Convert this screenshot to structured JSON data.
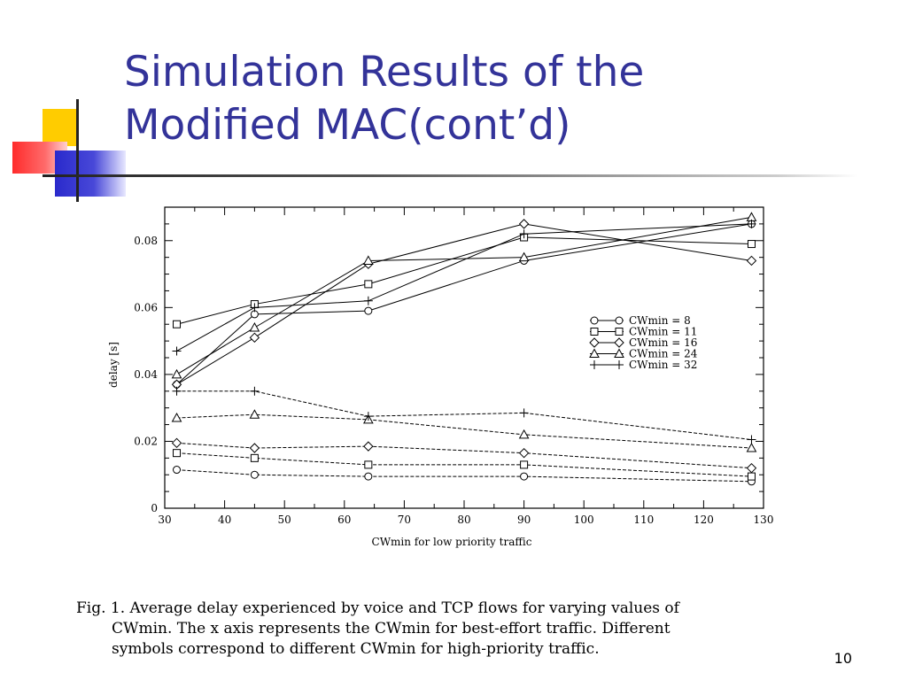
{
  "slide": {
    "title_line1": "Simulation Results of the",
    "title_line2": "Modified MAC(cont’d)",
    "page_number": "10",
    "colors": {
      "title": "#333399",
      "deco_yellow": "#ffcc00",
      "deco_red": "#ff3333",
      "deco_blue": "#3333cc"
    }
  },
  "caption": {
    "line1": "Fig. 1.  Average delay experienced by voice and TCP flows for varying values of",
    "line2": "CWmin. The x axis represents the CWmin for best-effort traffic. Different",
    "line3": "symbols correspond to different CWmin for high-priority traffic."
  },
  "chart_data": {
    "type": "line",
    "xlabel": "CWmin for low priority traffic",
    "ylabel": "delay [s]",
    "xlim": [
      30,
      130
    ],
    "ylim": [
      0,
      0.09
    ],
    "xticks": [
      30,
      40,
      50,
      60,
      70,
      80,
      90,
      100,
      110,
      120,
      130
    ],
    "yticks": [
      0,
      0.02,
      0.04,
      0.06,
      0.08
    ],
    "ytick_labels": [
      "0",
      "0.02",
      "0.04",
      "0.06",
      "0.08"
    ],
    "x": [
      32,
      45,
      64,
      90,
      128
    ],
    "legend_position": "center-right",
    "series": [
      {
        "name": "CWmin  = 8",
        "marker": "circle",
        "style": "solid",
        "values": [
          0.037,
          0.058,
          0.059,
          0.074,
          0.085
        ]
      },
      {
        "name": "CWmin = 11",
        "marker": "square",
        "style": "solid",
        "values": [
          0.055,
          0.061,
          0.067,
          0.081,
          0.079
        ]
      },
      {
        "name": "CWmin = 16",
        "marker": "diamond",
        "style": "solid",
        "values": [
          0.037,
          0.051,
          0.073,
          0.085,
          0.074
        ]
      },
      {
        "name": "CWmin = 24",
        "marker": "triangle",
        "style": "solid",
        "values": [
          0.04,
          0.054,
          0.074,
          0.075,
          0.087
        ]
      },
      {
        "name": "CWmin = 32",
        "marker": "plus",
        "style": "solid",
        "values": [
          0.047,
          0.06,
          0.062,
          0.082,
          0.085
        ]
      },
      {
        "marker": "circle",
        "style": "dashed",
        "values": [
          0.0115,
          0.01,
          0.0095,
          0.0095,
          0.008
        ]
      },
      {
        "marker": "square",
        "style": "dashed",
        "values": [
          0.0165,
          0.015,
          0.013,
          0.013,
          0.0095
        ]
      },
      {
        "marker": "diamond",
        "style": "dashed",
        "values": [
          0.0195,
          0.018,
          0.0185,
          0.0165,
          0.012
        ]
      },
      {
        "marker": "triangle",
        "style": "dashed",
        "values": [
          0.027,
          0.028,
          0.0265,
          0.022,
          0.018
        ]
      },
      {
        "marker": "plus",
        "style": "dashed",
        "values": [
          0.035,
          0.035,
          0.0275,
          0.0285,
          0.0205
        ]
      }
    ]
  }
}
